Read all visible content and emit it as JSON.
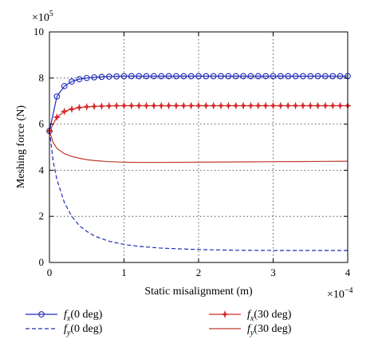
{
  "chart_data": {
    "type": "line",
    "xlabel": "Static misalignment (m)",
    "ylabel": "Meshing force (N)",
    "x_exponent": "×10",
    "x_exponent_power": "−4",
    "y_exponent": "×10",
    "y_exponent_power": "5",
    "xlim": [
      0,
      4
    ],
    "ylim": [
      0,
      10
    ],
    "x_ticks": [
      "0",
      "1",
      "2",
      "3",
      "4"
    ],
    "y_ticks": [
      "0",
      "2",
      "4",
      "6",
      "8",
      "10"
    ],
    "grid": true,
    "legend_position": "bottom",
    "series": [
      {
        "name_main": "f",
        "name_sub": "x",
        "name_suffix": "(0 deg)",
        "color": "#1f2bb8",
        "style": "solid",
        "marker": "circle",
        "x": [
          0,
          0.1,
          0.2,
          0.3,
          0.4,
          0.5,
          0.6,
          0.7,
          0.8,
          0.9,
          1.0,
          1.1,
          1.2,
          1.3,
          1.4,
          1.5,
          1.6,
          1.7,
          1.8,
          1.9,
          2.0,
          2.1,
          2.2,
          2.3,
          2.4,
          2.5,
          2.6,
          2.7,
          2.8,
          2.9,
          3.0,
          3.1,
          3.2,
          3.3,
          3.4,
          3.5,
          3.6,
          3.7,
          3.8,
          3.9,
          4.0
        ],
        "y": [
          5.7,
          7.2,
          7.65,
          7.85,
          7.95,
          8.0,
          8.03,
          8.05,
          8.06,
          8.07,
          8.08,
          8.08,
          8.08,
          8.08,
          8.08,
          8.08,
          8.08,
          8.08,
          8.08,
          8.08,
          8.08,
          8.08,
          8.08,
          8.08,
          8.08,
          8.08,
          8.08,
          8.08,
          8.08,
          8.08,
          8.08,
          8.08,
          8.08,
          8.08,
          8.08,
          8.08,
          8.08,
          8.08,
          8.08,
          8.08,
          8.08
        ]
      },
      {
        "name_main": "f",
        "name_sub": "y",
        "name_suffix": "(0 deg)",
        "color": "#1f2bb8",
        "style": "dashed",
        "marker": "none",
        "x": [
          0,
          0.05,
          0.1,
          0.2,
          0.3,
          0.4,
          0.5,
          0.6,
          0.8,
          1.0,
          1.2,
          1.5,
          2.0,
          2.5,
          3.0,
          3.5,
          4.0
        ],
        "y": [
          5.7,
          4.4,
          3.6,
          2.6,
          2.0,
          1.6,
          1.35,
          1.15,
          0.92,
          0.78,
          0.7,
          0.62,
          0.56,
          0.53,
          0.52,
          0.52,
          0.52
        ]
      },
      {
        "name_main": "f",
        "name_sub": "x",
        "name_suffix": "(30 deg)",
        "color": "#d42a2a",
        "style": "solid",
        "marker": "star",
        "x": [
          0,
          0.1,
          0.2,
          0.3,
          0.4,
          0.5,
          0.6,
          0.7,
          0.8,
          0.9,
          1.0,
          1.1,
          1.2,
          1.3,
          1.4,
          1.5,
          1.6,
          1.7,
          1.8,
          1.9,
          2.0,
          2.1,
          2.2,
          2.3,
          2.4,
          2.5,
          2.6,
          2.7,
          2.8,
          2.9,
          3.0,
          3.1,
          3.2,
          3.3,
          3.4,
          3.5,
          3.6,
          3.7,
          3.8,
          3.9,
          4.0
        ],
        "y": [
          5.7,
          6.3,
          6.55,
          6.65,
          6.72,
          6.75,
          6.77,
          6.78,
          6.79,
          6.8,
          6.8,
          6.8,
          6.8,
          6.8,
          6.8,
          6.8,
          6.8,
          6.8,
          6.8,
          6.8,
          6.8,
          6.8,
          6.8,
          6.8,
          6.8,
          6.8,
          6.8,
          6.8,
          6.8,
          6.8,
          6.8,
          6.8,
          6.8,
          6.8,
          6.8,
          6.8,
          6.8,
          6.8,
          6.8,
          6.8,
          6.8
        ]
      },
      {
        "name_main": "f",
        "name_sub": "y",
        "name_suffix": "(30 deg)",
        "color": "#c0392b",
        "style": "solid",
        "marker": "none",
        "x": [
          0,
          0.05,
          0.1,
          0.2,
          0.3,
          0.4,
          0.5,
          0.6,
          0.8,
          1.0,
          1.2,
          1.5,
          2.0,
          2.5,
          3.0,
          3.5,
          4.0
        ],
        "y": [
          5.7,
          5.2,
          4.95,
          4.72,
          4.6,
          4.52,
          4.46,
          4.42,
          4.37,
          4.35,
          4.34,
          4.34,
          4.35,
          4.36,
          4.37,
          4.38,
          4.39
        ]
      }
    ]
  }
}
